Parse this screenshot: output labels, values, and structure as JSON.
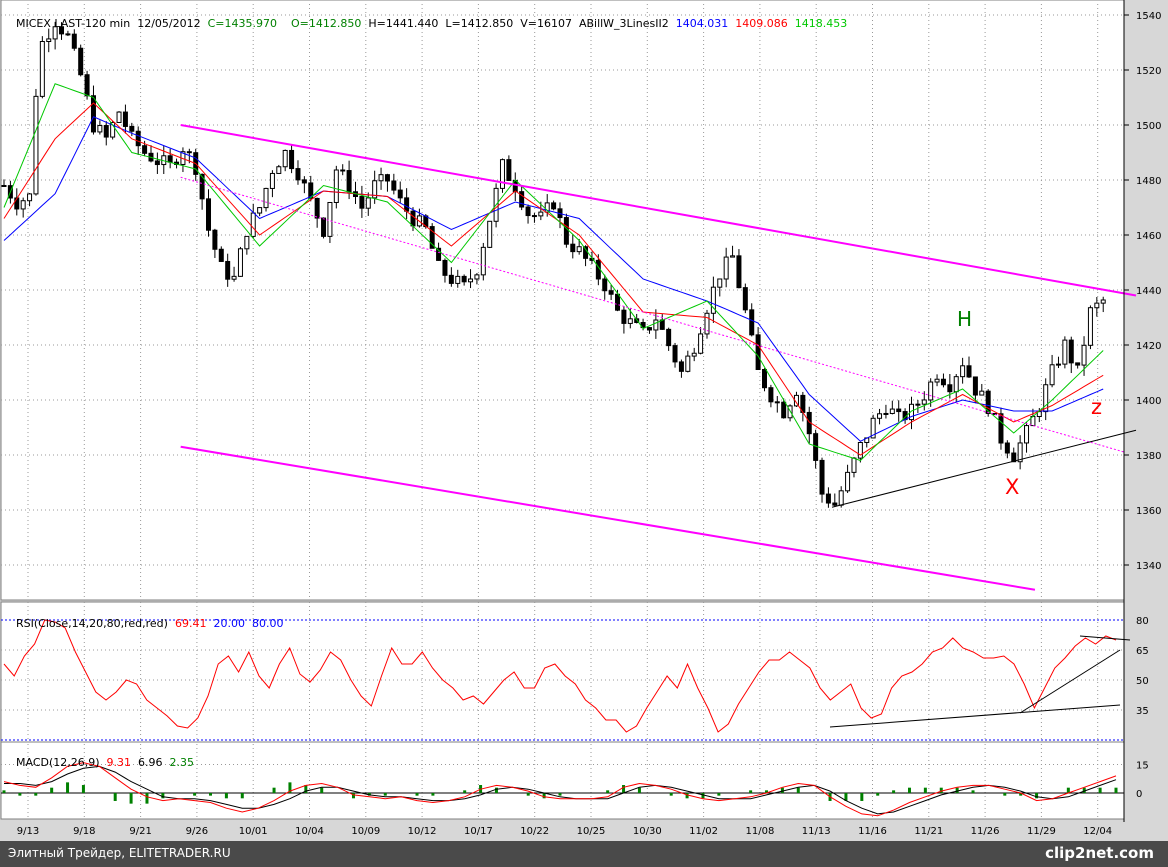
{
  "header": {
    "symbol": "MICEX LAST-120 min",
    "date": "12/05/2012",
    "close": "C=1435.970",
    "open": "O=1412.850",
    "high": "H=1441.440",
    "low": "L=1412.850",
    "volume": "V=16107",
    "indicator": "ABillW_3LinesII2",
    "ma_blue": "1404.031",
    "ma_red": "1409.086",
    "ma_green": "1418.453"
  },
  "rsi_header": {
    "label": "RSI(Close,14,20,80,red,red)",
    "value": "69.41",
    "low": "20.00",
    "high": "80.00"
  },
  "macd_header": {
    "label": "MACD(12,26,9)",
    "macd": "9.31",
    "signal": "6.96",
    "hist": "2.35"
  },
  "annotations": {
    "h": "H",
    "z": "z",
    "x": "X"
  },
  "footer": {
    "left": "Элитный Трейдер, ELITETRADER.RU",
    "right": "clip2net.com"
  },
  "colors": {
    "background": "#d7d7d7",
    "magenta": "#ff00ff",
    "ma_blue": "#0000ff",
    "ma_red": "#ff0000",
    "ma_green": "#00c800",
    "candles": "#000000",
    "macd_hist": "#008000"
  },
  "chart_data": [
    {
      "type": "candlestick",
      "panel": "price",
      "x_labels": [
        "9/13",
        "9/18",
        "9/21",
        "9/26",
        "10/01",
        "10/04",
        "10/09",
        "10/12",
        "10/17",
        "10/22",
        "10/25",
        "10/30",
        "11/02",
        "11/08",
        "11/13",
        "11/16",
        "11/21",
        "11/26",
        "11/29",
        "12/04"
      ],
      "y_ticks": [
        1340,
        1360,
        1380,
        1400,
        1420,
        1440,
        1460,
        1480,
        1500,
        1520,
        1540
      ],
      "ylim": [
        1328,
        1544
      ],
      "close_path": [
        [
          0,
          1478
        ],
        [
          2,
          1472
        ],
        [
          4,
          1474
        ],
        [
          5,
          1512
        ],
        [
          6,
          1530
        ],
        [
          8,
          1538
        ],
        [
          10,
          1532
        ],
        [
          12,
          1518
        ],
        [
          14,
          1500
        ],
        [
          16,
          1495
        ],
        [
          18,
          1505
        ],
        [
          20,
          1495
        ],
        [
          22,
          1490
        ],
        [
          24,
          1487
        ],
        [
          26,
          1485
        ],
        [
          28,
          1492
        ],
        [
          30,
          1485
        ],
        [
          32,
          1462
        ],
        [
          34,
          1448
        ],
        [
          36,
          1444
        ],
        [
          38,
          1462
        ],
        [
          40,
          1470
        ],
        [
          42,
          1484
        ],
        [
          44,
          1490
        ],
        [
          46,
          1483
        ],
        [
          48,
          1472
        ],
        [
          50,
          1462
        ],
        [
          52,
          1484
        ],
        [
          54,
          1478
        ],
        [
          56,
          1470
        ],
        [
          58,
          1478
        ],
        [
          60,
          1480
        ],
        [
          62,
          1472
        ],
        [
          64,
          1466
        ],
        [
          66,
          1462
        ],
        [
          68,
          1448
        ],
        [
          70,
          1444
        ],
        [
          72,
          1441
        ],
        [
          74,
          1448
        ],
        [
          76,
          1466
        ],
        [
          78,
          1485
        ],
        [
          80,
          1478
        ],
        [
          82,
          1468
        ],
        [
          84,
          1466
        ],
        [
          86,
          1472
        ],
        [
          88,
          1458
        ],
        [
          90,
          1454
        ],
        [
          92,
          1448
        ],
        [
          94,
          1442
        ],
        [
          96,
          1432
        ],
        [
          98,
          1428
        ],
        [
          100,
          1424
        ],
        [
          102,
          1430
        ],
        [
          104,
          1420
        ],
        [
          106,
          1410
        ],
        [
          108,
          1420
        ],
        [
          110,
          1434
        ],
        [
          112,
          1446
        ],
        [
          114,
          1452
        ],
        [
          116,
          1432
        ],
        [
          118,
          1410
        ],
        [
          120,
          1402
        ],
        [
          122,
          1396
        ],
        [
          124,
          1404
        ],
        [
          126,
          1388
        ],
        [
          128,
          1366
        ],
        [
          130,
          1362
        ],
        [
          132,
          1372
        ],
        [
          134,
          1383
        ],
        [
          136,
          1392
        ],
        [
          138,
          1398
        ],
        [
          140,
          1393
        ],
        [
          142,
          1396
        ],
        [
          144,
          1402
        ],
        [
          146,
          1410
        ],
        [
          148,
          1406
        ],
        [
          150,
          1414
        ],
        [
          152,
          1404
        ],
        [
          154,
          1398
        ],
        [
          156,
          1386
        ],
        [
          158,
          1380
        ],
        [
          160,
          1388
        ],
        [
          162,
          1398
        ],
        [
          164,
          1410
        ],
        [
          166,
          1420
        ],
        [
          168,
          1410
        ],
        [
          170,
          1432
        ],
        [
          172,
          1436
        ]
      ],
      "ma_blue_path": [
        [
          0,
          1458
        ],
        [
          8,
          1475
        ],
        [
          14,
          1503
        ],
        [
          20,
          1497
        ],
        [
          30,
          1488
        ],
        [
          40,
          1466
        ],
        [
          50,
          1476
        ],
        [
          60,
          1474
        ],
        [
          70,
          1462
        ],
        [
          80,
          1472
        ],
        [
          90,
          1466
        ],
        [
          100,
          1444
        ],
        [
          110,
          1436
        ],
        [
          118,
          1428
        ],
        [
          126,
          1402
        ],
        [
          134,
          1385
        ],
        [
          142,
          1394
        ],
        [
          150,
          1400
        ],
        [
          158,
          1396
        ],
        [
          164,
          1396
        ],
        [
          172,
          1404
        ]
      ],
      "ma_red_path": [
        [
          0,
          1466
        ],
        [
          8,
          1495
        ],
        [
          14,
          1508
        ],
        [
          20,
          1495
        ],
        [
          30,
          1486
        ],
        [
          40,
          1460
        ],
        [
          50,
          1476
        ],
        [
          60,
          1474
        ],
        [
          70,
          1456
        ],
        [
          80,
          1476
        ],
        [
          90,
          1460
        ],
        [
          100,
          1432
        ],
        [
          110,
          1430
        ],
        [
          118,
          1420
        ],
        [
          126,
          1392
        ],
        [
          134,
          1380
        ],
        [
          142,
          1392
        ],
        [
          150,
          1402
        ],
        [
          158,
          1392
        ],
        [
          164,
          1398
        ],
        [
          172,
          1409
        ]
      ],
      "ma_green_path": [
        [
          0,
          1470
        ],
        [
          8,
          1515
        ],
        [
          14,
          1510
        ],
        [
          20,
          1490
        ],
        [
          30,
          1484
        ],
        [
          40,
          1456
        ],
        [
          50,
          1478
        ],
        [
          60,
          1472
        ],
        [
          70,
          1450
        ],
        [
          80,
          1480
        ],
        [
          90,
          1458
        ],
        [
          100,
          1426
        ],
        [
          110,
          1436
        ],
        [
          118,
          1416
        ],
        [
          126,
          1384
        ],
        [
          134,
          1378
        ],
        [
          142,
          1396
        ],
        [
          150,
          1404
        ],
        [
          158,
          1388
        ],
        [
          164,
          1400
        ],
        [
          172,
          1418
        ]
      ],
      "trendlines": [
        {
          "color": "magenta",
          "style": "solid",
          "from": [
            1500,
            0.16
          ],
          "to": [
            1438,
            1.0
          ]
        },
        {
          "color": "magenta",
          "style": "dotted",
          "from": [
            1481,
            0.16
          ],
          "to": [
            1381,
            0.99
          ]
        },
        {
          "color": "magenta",
          "style": "solid",
          "from": [
            1383,
            0.16
          ],
          "to": [
            1331,
            0.91
          ]
        },
        {
          "color": "black",
          "style": "solid",
          "from": [
            1361,
            0.74
          ],
          "to": [
            1389,
            1.0
          ]
        }
      ]
    },
    {
      "type": "line",
      "panel": "rsi",
      "y_ticks": [
        35,
        50,
        65,
        80
      ],
      "ylim": [
        20,
        80
      ],
      "levels": [
        20,
        80
      ],
      "values": [
        58,
        52,
        62,
        68,
        80,
        79,
        76,
        64,
        54,
        44,
        40,
        44,
        50,
        48,
        40,
        36,
        32,
        27,
        26,
        31,
        42,
        58,
        62,
        54,
        64,
        52,
        46,
        58,
        66,
        53,
        49,
        55,
        64,
        60,
        50,
        42,
        37,
        52,
        66,
        58,
        58,
        64,
        56,
        50,
        46,
        40,
        42,
        38,
        44,
        50,
        54,
        46,
        46,
        56,
        58,
        52,
        48,
        40,
        36,
        30,
        30,
        24,
        27,
        36,
        44,
        52,
        46,
        58,
        46,
        36,
        24,
        28,
        38,
        46,
        54,
        60,
        60,
        64,
        60,
        56,
        46,
        40,
        44,
        48,
        36,
        31,
        33,
        46,
        52,
        54,
        58,
        64,
        66,
        71,
        66,
        64,
        61,
        61,
        62,
        58,
        48,
        36,
        46,
        56,
        61,
        67,
        71,
        68,
        72,
        70
      ]
    },
    {
      "type": "line",
      "panel": "macd",
      "y_ticks": [
        0,
        15
      ],
      "ylim": [
        -12,
        22
      ],
      "macd": [
        6,
        4,
        3,
        8,
        14,
        16,
        14,
        8,
        2,
        -2,
        -4,
        -3,
        -4,
        -5,
        -8,
        -10,
        -8,
        -4,
        1,
        4,
        5,
        3,
        -1,
        -2,
        -3,
        -2,
        -4,
        -5,
        -4,
        -2,
        2,
        4,
        3,
        1,
        -2,
        -3,
        -3,
        -3,
        -2,
        3,
        5,
        4,
        2,
        -1,
        -3,
        -4,
        -3,
        -2,
        0,
        3,
        5,
        4,
        -2,
        -7,
        -11,
        -12,
        -9,
        -5,
        -2,
        1,
        3,
        4,
        4,
        2,
        0,
        -4,
        -3,
        0,
        3,
        6,
        9
      ],
      "signal": [
        5,
        5,
        4,
        6,
        10,
        13,
        14,
        11,
        6,
        2,
        -2,
        -3,
        -3,
        -4,
        -6,
        -8,
        -8,
        -6,
        -3,
        1,
        3,
        3,
        1,
        -1,
        -2,
        -2,
        -3,
        -4,
        -4,
        -3,
        -1,
        2,
        3,
        2,
        0,
        -2,
        -3,
        -3,
        -3,
        0,
        3,
        4,
        3,
        1,
        -1,
        -3,
        -3,
        -3,
        -1,
        1,
        3,
        4,
        1,
        -4,
        -8,
        -11,
        -10,
        -7,
        -4,
        -1,
        1,
        3,
        4,
        3,
        1,
        -2,
        -3,
        -2,
        1,
        4,
        7
      ]
    }
  ]
}
